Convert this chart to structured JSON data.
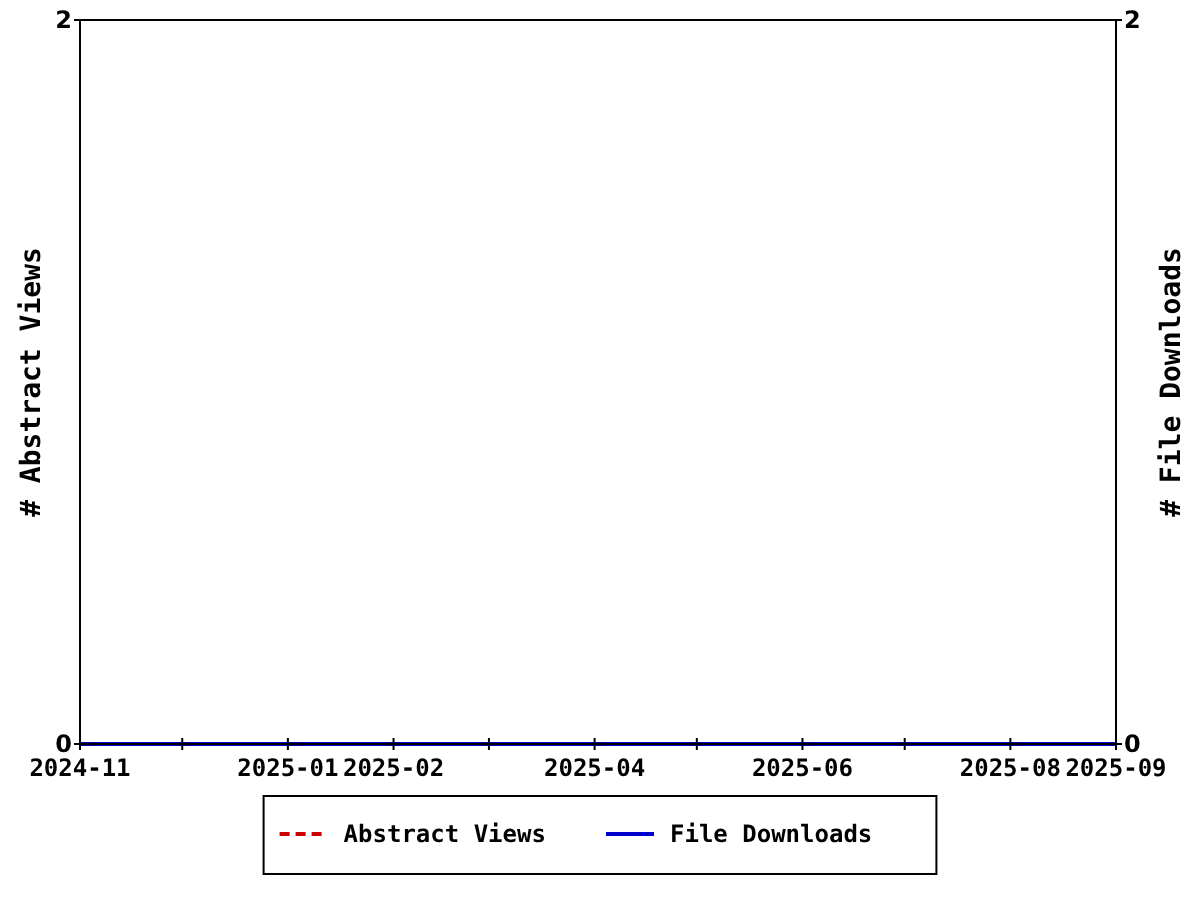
{
  "chart_data": {
    "type": "line",
    "ylabel": "# Abstract Views",
    "y2label": "# File Downloads",
    "x": [
      "2024-11",
      "2024-12",
      "2025-01",
      "2025-02",
      "2025-03",
      "2025-04",
      "2025-05",
      "2025-06",
      "2025-07",
      "2025-08",
      "2025-09"
    ],
    "series": [
      {
        "name": "Abstract Views",
        "color": "#cc0000",
        "line_style": "dashed",
        "values": [
          null,
          null,
          null,
          null,
          null,
          null,
          null,
          null,
          null,
          null,
          null
        ]
      },
      {
        "name": "File Downloads",
        "color": "#0000cc",
        "line_style": "solid",
        "values": [
          0,
          0,
          0,
          0,
          0,
          0,
          0,
          0,
          0,
          0,
          0
        ]
      }
    ],
    "xlim": [
      "2024-11",
      "2025-09"
    ],
    "xticks": [
      "2024-11",
      {
        "value": "2024-12",
        "label": null
      },
      "2025-01",
      "2025-02",
      {
        "value": "2025-03",
        "label": null
      },
      "2025-04",
      {
        "value": "2025-05",
        "label": null
      },
      "2025-06",
      {
        "value": "2025-07",
        "label": null
      },
      "2025-08",
      "2025-09"
    ],
    "ylim": [
      0,
      2
    ],
    "yticks": [
      0,
      2
    ],
    "y2lim": [
      0,
      2
    ],
    "y2ticks": [
      0,
      2
    ],
    "legend": "bottom",
    "marker": "none"
  }
}
